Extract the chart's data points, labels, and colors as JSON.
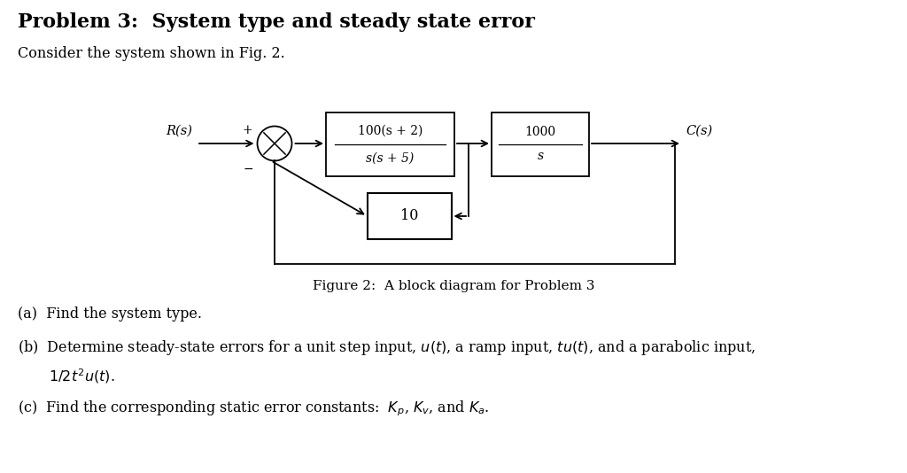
{
  "title": "Problem 3:  System type and steady state error",
  "title_fontsize": 16,
  "title_fontweight": "bold",
  "title_fontfamily": "serif",
  "bg_color": "#ffffff",
  "intro_text": "Consider the system shown in Fig. 2.",
  "figure_caption": "Figure 2:  A block diagram for Problem 3",
  "block1_numerator": "100(s + 2)",
  "block1_denominator": "s(s + 5)",
  "block2_numerator": "1000",
  "block2_denominator": "s",
  "block_feedback": "10",
  "label_Rs": "R(s)",
  "label_Cs": "C(s)",
  "qa": "(a)  Find the system type.",
  "qb1": "(b)  Determine steady-state errors for a unit step input, $u(t)$, a ramp input, $tu(t)$, and a parabolic input,",
  "qb2": "$1/2t^2u(t)$.",
  "qc": "(c)  Find the corresponding static error constants:  $K_p$, $K_v$, and $K_a$."
}
